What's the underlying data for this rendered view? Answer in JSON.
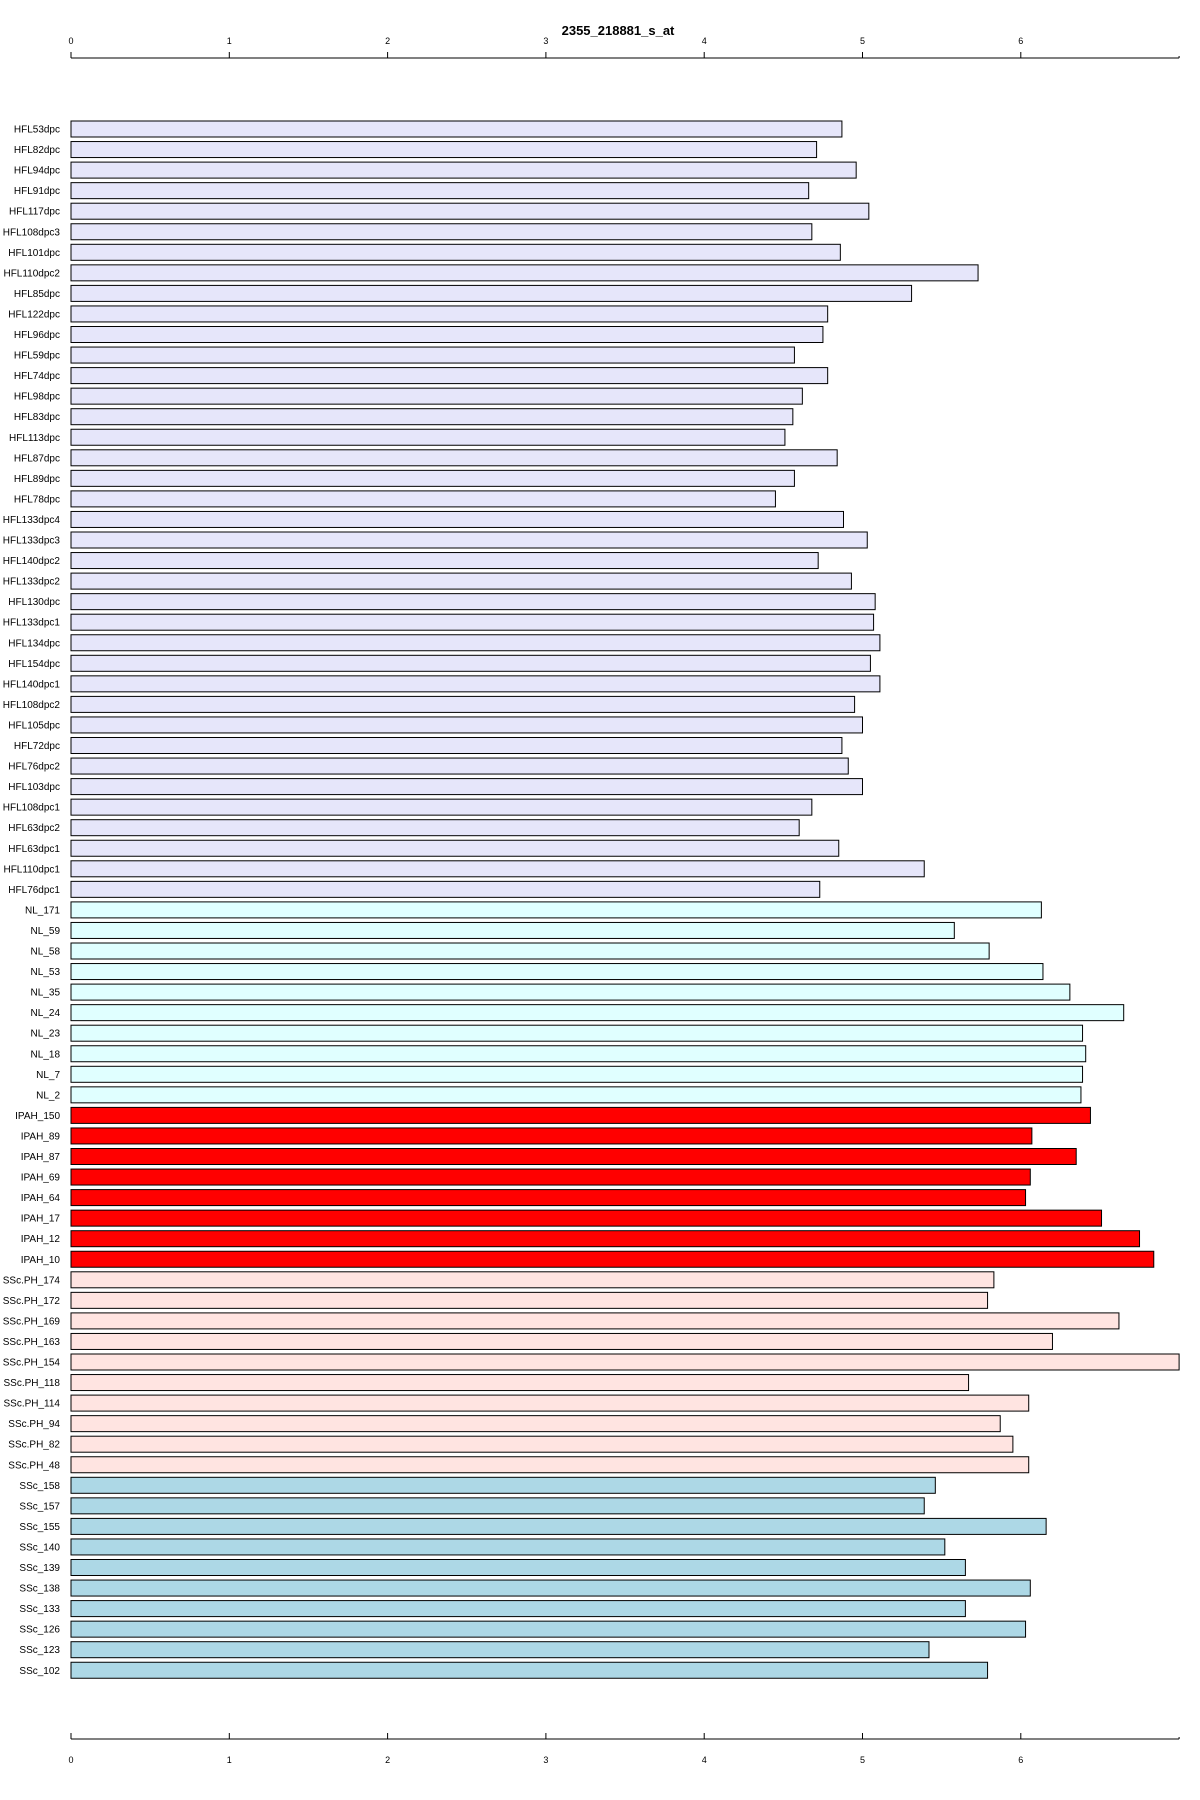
{
  "chart_data": {
    "type": "bar",
    "orientation": "horizontal",
    "title": "2355_218881_s_at",
    "xlim": [
      0,
      7
    ],
    "ticks": [
      0,
      1,
      2,
      3,
      4,
      5,
      6
    ],
    "axes": "top-and-bottom",
    "grid": false,
    "group_colors": {
      "HFL": "#e6e6fa",
      "NL": "#e0ffff",
      "IPAH": "#ff0000",
      "SScPH": "#ffe4e1",
      "SSc": "#add8e6"
    },
    "bars": [
      {
        "label": "HFL53dpc",
        "value": 4.87,
        "group": "HFL"
      },
      {
        "label": "HFL82dpc",
        "value": 4.71,
        "group": "HFL"
      },
      {
        "label": "HFL94dpc",
        "value": 4.96,
        "group": "HFL"
      },
      {
        "label": "HFL91dpc",
        "value": 4.66,
        "group": "HFL"
      },
      {
        "label": "HFL117dpc",
        "value": 5.04,
        "group": "HFL"
      },
      {
        "label": "HFL108dpc3",
        "value": 4.68,
        "group": "HFL"
      },
      {
        "label": "HFL101dpc",
        "value": 4.86,
        "group": "HFL"
      },
      {
        "label": "HFL110dpc2",
        "value": 5.73,
        "group": "HFL"
      },
      {
        "label": "HFL85dpc",
        "value": 5.31,
        "group": "HFL"
      },
      {
        "label": "HFL122dpc",
        "value": 4.78,
        "group": "HFL"
      },
      {
        "label": "HFL96dpc",
        "value": 4.75,
        "group": "HFL"
      },
      {
        "label": "HFL59dpc",
        "value": 4.57,
        "group": "HFL"
      },
      {
        "label": "HFL74dpc",
        "value": 4.78,
        "group": "HFL"
      },
      {
        "label": "HFL98dpc",
        "value": 4.62,
        "group": "HFL"
      },
      {
        "label": "HFL83dpc",
        "value": 4.56,
        "group": "HFL"
      },
      {
        "label": "HFL113dpc",
        "value": 4.51,
        "group": "HFL"
      },
      {
        "label": "HFL87dpc",
        "value": 4.84,
        "group": "HFL"
      },
      {
        "label": "HFL89dpc",
        "value": 4.57,
        "group": "HFL"
      },
      {
        "label": "HFL78dpc",
        "value": 4.45,
        "group": "HFL"
      },
      {
        "label": "HFL133dpc4",
        "value": 4.88,
        "group": "HFL"
      },
      {
        "label": "HFL133dpc3",
        "value": 5.03,
        "group": "HFL"
      },
      {
        "label": "HFL140dpc2",
        "value": 4.72,
        "group": "HFL"
      },
      {
        "label": "HFL133dpc2",
        "value": 4.93,
        "group": "HFL"
      },
      {
        "label": "HFL130dpc",
        "value": 5.08,
        "group": "HFL"
      },
      {
        "label": "HFL133dpc1",
        "value": 5.07,
        "group": "HFL"
      },
      {
        "label": "HFL134dpc",
        "value": 5.11,
        "group": "HFL"
      },
      {
        "label": "HFL154dpc",
        "value": 5.05,
        "group": "HFL"
      },
      {
        "label": "HFL140dpc1",
        "value": 5.11,
        "group": "HFL"
      },
      {
        "label": "HFL108dpc2",
        "value": 4.95,
        "group": "HFL"
      },
      {
        "label": "HFL105dpc",
        "value": 5.0,
        "group": "HFL"
      },
      {
        "label": "HFL72dpc",
        "value": 4.87,
        "group": "HFL"
      },
      {
        "label": "HFL76dpc2",
        "value": 4.91,
        "group": "HFL"
      },
      {
        "label": "HFL103dpc",
        "value": 5.0,
        "group": "HFL"
      },
      {
        "label": "HFL108dpc1",
        "value": 4.68,
        "group": "HFL"
      },
      {
        "label": "HFL63dpc2",
        "value": 4.6,
        "group": "HFL"
      },
      {
        "label": "HFL63dpc1",
        "value": 4.85,
        "group": "HFL"
      },
      {
        "label": "HFL110dpc1",
        "value": 5.39,
        "group": "HFL"
      },
      {
        "label": "HFL76dpc1",
        "value": 4.73,
        "group": "HFL"
      },
      {
        "label": "NL_171",
        "value": 6.13,
        "group": "NL"
      },
      {
        "label": "NL_59",
        "value": 5.58,
        "group": "NL"
      },
      {
        "label": "NL_58",
        "value": 5.8,
        "group": "NL"
      },
      {
        "label": "NL_53",
        "value": 6.14,
        "group": "NL"
      },
      {
        "label": "NL_35",
        "value": 6.31,
        "group": "NL"
      },
      {
        "label": "NL_24",
        "value": 6.65,
        "group": "NL"
      },
      {
        "label": "NL_23",
        "value": 6.39,
        "group": "NL"
      },
      {
        "label": "NL_18",
        "value": 6.41,
        "group": "NL"
      },
      {
        "label": "NL_7",
        "value": 6.39,
        "group": "NL"
      },
      {
        "label": "NL_2",
        "value": 6.38,
        "group": "NL"
      },
      {
        "label": "IPAH_150",
        "value": 6.44,
        "group": "IPAH"
      },
      {
        "label": "IPAH_89",
        "value": 6.07,
        "group": "IPAH"
      },
      {
        "label": "IPAH_87",
        "value": 6.35,
        "group": "IPAH"
      },
      {
        "label": "IPAH_69",
        "value": 6.06,
        "group": "IPAH"
      },
      {
        "label": "IPAH_64",
        "value": 6.03,
        "group": "IPAH"
      },
      {
        "label": "IPAH_17",
        "value": 6.51,
        "group": "IPAH"
      },
      {
        "label": "IPAH_12",
        "value": 6.75,
        "group": "IPAH"
      },
      {
        "label": "IPAH_10",
        "value": 6.84,
        "group": "IPAH"
      },
      {
        "label": "SSc.PH_174",
        "value": 5.83,
        "group": "SScPH"
      },
      {
        "label": "SSc.PH_172",
        "value": 5.79,
        "group": "SScPH"
      },
      {
        "label": "SSc.PH_169",
        "value": 6.62,
        "group": "SScPH"
      },
      {
        "label": "SSc.PH_163",
        "value": 6.2,
        "group": "SScPH"
      },
      {
        "label": "SSc.PH_154",
        "value": 7.0,
        "group": "SScPH"
      },
      {
        "label": "SSc.PH_118",
        "value": 5.67,
        "group": "SScPH"
      },
      {
        "label": "SSc.PH_114",
        "value": 6.05,
        "group": "SScPH"
      },
      {
        "label": "SSc.PH_94",
        "value": 5.87,
        "group": "SScPH"
      },
      {
        "label": "SSc.PH_82",
        "value": 5.95,
        "group": "SScPH"
      },
      {
        "label": "SSc.PH_48",
        "value": 6.05,
        "group": "SScPH"
      },
      {
        "label": "SSc_158",
        "value": 5.46,
        "group": "SSc"
      },
      {
        "label": "SSc_157",
        "value": 5.39,
        "group": "SSc"
      },
      {
        "label": "SSc_155",
        "value": 6.16,
        "group": "SSc"
      },
      {
        "label": "SSc_140",
        "value": 5.52,
        "group": "SSc"
      },
      {
        "label": "SSc_139",
        "value": 5.65,
        "group": "SSc"
      },
      {
        "label": "SSc_138",
        "value": 6.06,
        "group": "SSc"
      },
      {
        "label": "SSc_133",
        "value": 5.65,
        "group": "SSc"
      },
      {
        "label": "SSc_126",
        "value": 6.03,
        "group": "SSc"
      },
      {
        "label": "SSc_123",
        "value": 5.42,
        "group": "SSc"
      },
      {
        "label": "SSc_102",
        "value": 5.79,
        "group": "SSc"
      }
    ]
  }
}
